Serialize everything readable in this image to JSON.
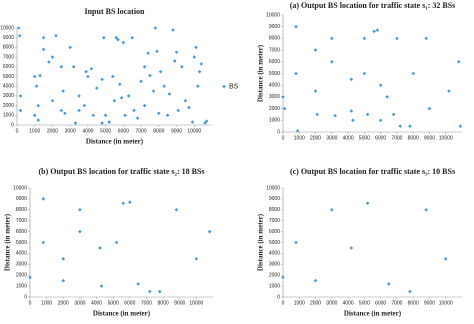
{
  "chart_data": [
    {
      "type": "scatter",
      "title": "Input BS location",
      "xlabel": "Distance (in meter)",
      "ylabel": "Distance (in meter)",
      "xlim": [
        0,
        11000
      ],
      "ylim": [
        0,
        10000
      ],
      "xticks": [
        0,
        1000,
        2000,
        3000,
        4000,
        5000,
        6000,
        7000,
        8000,
        9000,
        10000
      ],
      "yticks": [
        0,
        1000,
        2000,
        3000,
        4000,
        5000,
        6000,
        7000,
        8000,
        9000,
        10000
      ],
      "legend": "right",
      "series": [
        {
          "name": "BS",
          "color": "#4a9bd6",
          "x": [
            100,
            150,
            200,
            200,
            1000,
            1100,
            1200,
            1000,
            1200,
            1300,
            1500,
            1500,
            1800,
            2000,
            2000,
            2200,
            2500,
            2500,
            2700,
            2600,
            3000,
            3200,
            3300,
            3500,
            3500,
            3800,
            3900,
            4000,
            4200,
            4300,
            4500,
            4800,
            4900,
            4800,
            5000,
            5200,
            5400,
            5500,
            5600,
            5700,
            5800,
            5900,
            6000,
            6100,
            6300,
            6500,
            6600,
            6800,
            7000,
            7200,
            7200,
            7400,
            7500,
            7700,
            7800,
            7900,
            8000,
            8100,
            8300,
            8500,
            8600,
            8800,
            8900,
            9000,
            9100,
            9300,
            9500,
            9700,
            9900,
            10000,
            10100,
            10200,
            10400,
            10600,
            10700,
            10300
          ],
          "values": [
            10000,
            9200,
            3000,
            1500,
            5000,
            4000,
            2000,
            1000,
            500,
            5100,
            7800,
            9000,
            6500,
            7000,
            2500,
            9200,
            6000,
            1500,
            1200,
            3500,
            8000,
            6000,
            200,
            3000,
            1500,
            2000,
            5500,
            5000,
            5800,
            1000,
            3800,
            200,
            9000,
            4700,
            1000,
            300,
            5000,
            2500,
            9000,
            8800,
            4200,
            2800,
            8500,
            1000,
            3000,
            9000,
            1500,
            700,
            4500,
            2000,
            6000,
            7400,
            5100,
            3500,
            10000,
            7600,
            1200,
            5500,
            4000,
            1000,
            3200,
            9800,
            6600,
            7500,
            1500,
            6000,
            2500,
            1800,
            300,
            7000,
            8000,
            4000,
            6300,
            200,
            400,
            5500
          ]
        }
      ]
    },
    {
      "type": "scatter",
      "title": "(a) Output BS location for traffic state s₁: 32 BSs",
      "ylabel": "Distance (in meter)",
      "xlim": [
        0,
        11000
      ],
      "ylim": [
        0,
        10000
      ],
      "xticks": [
        0,
        1000,
        2000,
        3000,
        4000,
        5000,
        6000,
        7000,
        8000,
        9000,
        10000
      ],
      "yticks": [
        0,
        1000,
        2000,
        3000,
        4000,
        5000,
        6000,
        7000,
        8000,
        9000,
        10000
      ],
      "color": "#4a9bd6",
      "x": [
        0,
        100,
        800,
        800,
        900,
        2000,
        2000,
        2100,
        3000,
        3000,
        3200,
        4200,
        4200,
        4300,
        5000,
        5000,
        5200,
        5600,
        5800,
        6000,
        6000,
        6400,
        6800,
        7000,
        7200,
        7800,
        8000,
        8800,
        9000,
        10200,
        10800,
        10900
      ],
      "values": [
        3000,
        2000,
        9000,
        5000,
        100,
        7000,
        3500,
        1500,
        8000,
        6000,
        1400,
        4500,
        1800,
        1000,
        8000,
        5000,
        1500,
        8600,
        8700,
        1000,
        4000,
        3000,
        1500,
        8000,
        500,
        500,
        5000,
        8000,
        2000,
        3500,
        6000,
        500
      ]
    },
    {
      "type": "scatter",
      "title": "(b) Output BS location for traffic state s₂: 18 BSs",
      "xlabel": "Distance (in meter)",
      "ylabel": "Distance (in meter)",
      "xlim": [
        0,
        11000
      ],
      "ylim": [
        0,
        10000
      ],
      "xticks": [
        0,
        1000,
        2000,
        3000,
        4000,
        5000,
        6000,
        7000,
        8000,
        9000,
        10000
      ],
      "yticks": [
        0,
        1000,
        2000,
        3000,
        4000,
        5000,
        6000,
        7000,
        8000,
        9000,
        10000
      ],
      "color": "#4a9bd6",
      "x": [
        0,
        800,
        800,
        2000,
        2000,
        3000,
        3000,
        4200,
        4300,
        5200,
        5600,
        6000,
        6500,
        7200,
        7800,
        8800,
        10000,
        10800
      ],
      "values": [
        1800,
        9000,
        5000,
        3500,
        1500,
        8000,
        6000,
        4500,
        1000,
        5000,
        8600,
        8700,
        1200,
        500,
        500,
        8000,
        3500,
        6000
      ]
    },
    {
      "type": "scatter",
      "title": "(c) Output BS location for traffic state s₃: 10 BSs",
      "xlabel": "Distance (in meter)",
      "ylabel": "Distance (in meter)",
      "xlim": [
        0,
        11000
      ],
      "ylim": [
        0,
        10000
      ],
      "xticks": [
        0,
        1000,
        2000,
        3000,
        4000,
        5000,
        6000,
        7000,
        8000,
        9000,
        10000
      ],
      "yticks": [
        0,
        1000,
        2000,
        3000,
        4000,
        5000,
        6000,
        7000,
        8000,
        9000,
        10000
      ],
      "color": "#4a9bd6",
      "x": [
        0,
        800,
        2000,
        3000,
        4200,
        5200,
        6500,
        7800,
        8800,
        10000
      ],
      "values": [
        1800,
        5000,
        1500,
        8000,
        4500,
        8600,
        1200,
        500,
        8000,
        3500
      ]
    }
  ]
}
